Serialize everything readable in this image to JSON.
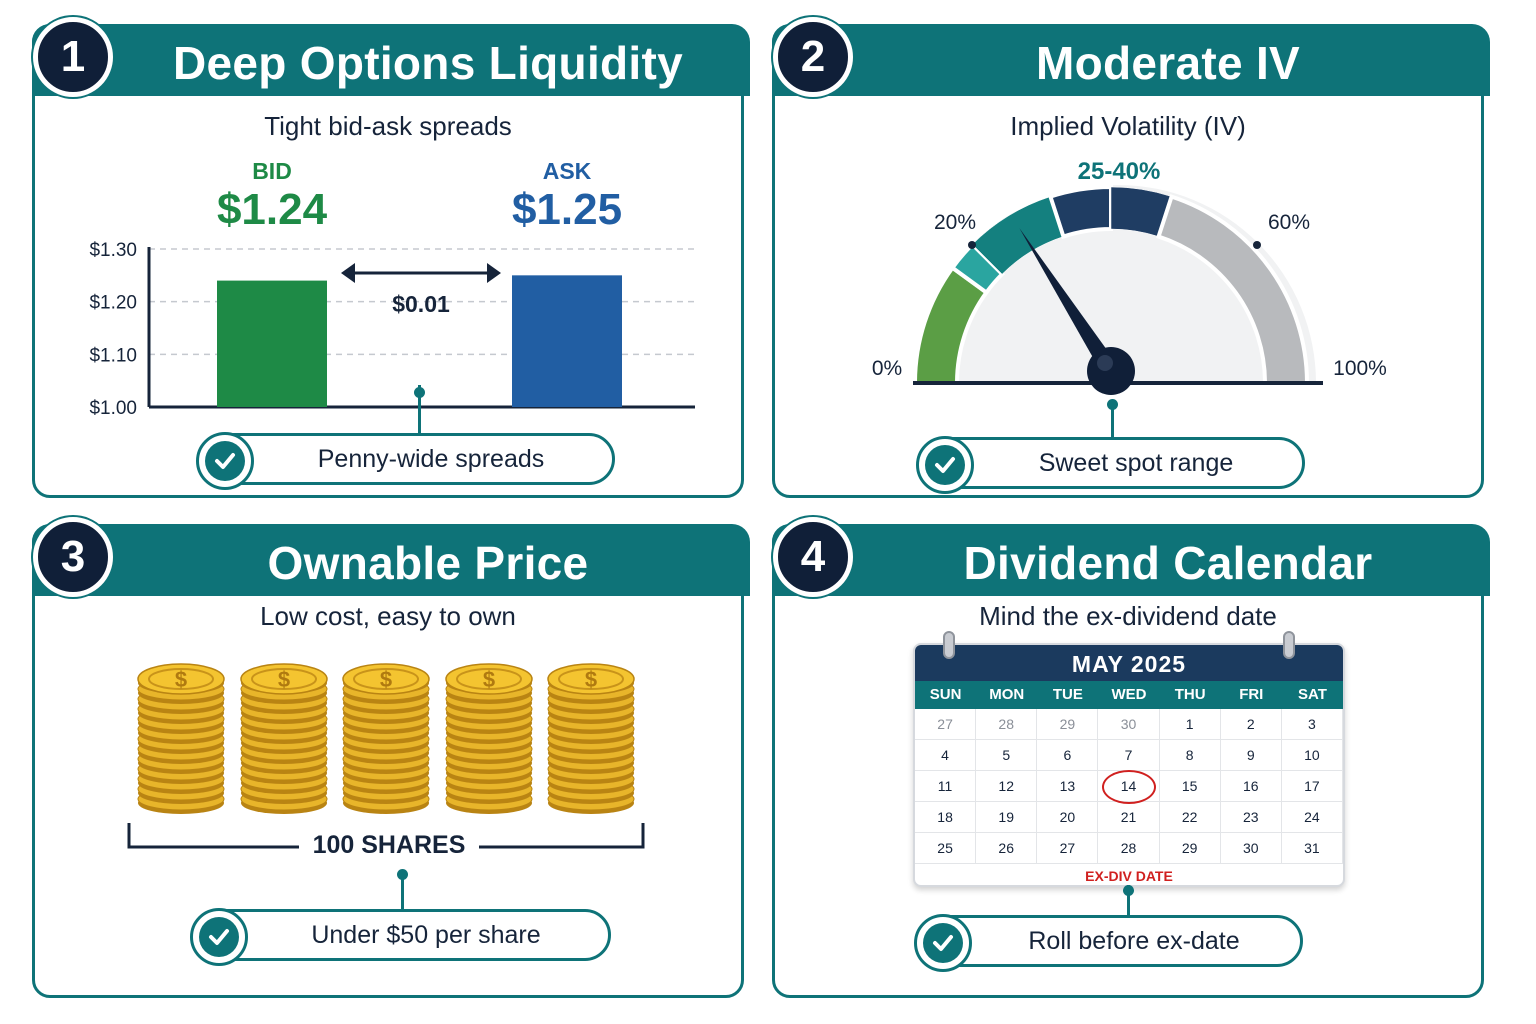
{
  "panels": [
    {
      "number": "1",
      "title": "Deep Options Liquidity",
      "subtitle": "Tight bid-ask spreads",
      "bid_label": "BID",
      "bid_price": "$1.24",
      "ask_label": "ASK",
      "ask_price": "$1.25",
      "spread_label": "$0.01",
      "pill": "Penny-wide spreads"
    },
    {
      "number": "2",
      "title": "Moderate IV",
      "subtitle": "Implied Volatility (IV)",
      "range_label": "25-40%",
      "labels": {
        "zero": "0%",
        "twenty": "20%",
        "sixty": "60%",
        "hundred": "100%"
      },
      "pill": "Sweet spot range"
    },
    {
      "number": "3",
      "title": "Ownable Price",
      "subtitle": "Low cost, easy to own",
      "shares_label": "100 SHARES",
      "coin_symbol": "$",
      "pill": "Under $50 per share"
    },
    {
      "number": "4",
      "title": "Dividend Calendar",
      "subtitle": "Mind the ex-dividend date",
      "month": "MAY 2025",
      "ex_div_label": "EX-DIV DATE",
      "pill": "Roll before ex-date"
    }
  ],
  "chart_data": [
    {
      "type": "bar",
      "categories": [
        "BID",
        "ASK"
      ],
      "values": [
        1.24,
        1.25
      ],
      "ylim": [
        1.0,
        1.3
      ],
      "yticks": [
        "$1.00",
        "$1.10",
        "$1.20",
        "$1.30"
      ],
      "colors": [
        "#1e8a46",
        "#215ea3"
      ],
      "grid": true
    },
    {
      "type": "gauge",
      "range": [
        0,
        100
      ],
      "segments": [
        {
          "from": 0,
          "to": 20,
          "color": "#5b9e45"
        },
        {
          "from": 20,
          "to": 25,
          "color": "#2aa5a0"
        },
        {
          "from": 25,
          "to": 40,
          "color": "#14807f"
        },
        {
          "from": 40,
          "to": 50,
          "color": "#1f3d63"
        },
        {
          "from": 50,
          "to": 60,
          "color": "#1f3d63"
        },
        {
          "from": 60,
          "to": 100,
          "color": "#b8babd"
        }
      ],
      "needle_value": 33
    }
  ],
  "calendar": {
    "day_names": [
      "SUN",
      "MON",
      "TUE",
      "WED",
      "THU",
      "FRI",
      "SAT"
    ],
    "weeks": [
      [
        "27",
        "28",
        "29",
        "30",
        "1",
        "2",
        "3"
      ],
      [
        "4",
        "5",
        "6",
        "7",
        "8",
        "9",
        "10"
      ],
      [
        "11",
        "12",
        "13",
        "14",
        "15",
        "16",
        "17"
      ],
      [
        "18",
        "19",
        "20",
        "21",
        "22",
        "23",
        "24"
      ],
      [
        "25",
        "26",
        "27",
        "28",
        "29",
        "30",
        "31"
      ]
    ],
    "muted_first_row_count": 4,
    "marked_day": "14"
  },
  "colors": {
    "teal": "#0e7378",
    "navy": "#101f38",
    "bid_green": "#1e8a46",
    "ask_blue": "#215ea3",
    "ex_div_red": "#d0201f"
  },
  "icons": {
    "check": "check-icon",
    "coin": "coin-stack-icon"
  }
}
